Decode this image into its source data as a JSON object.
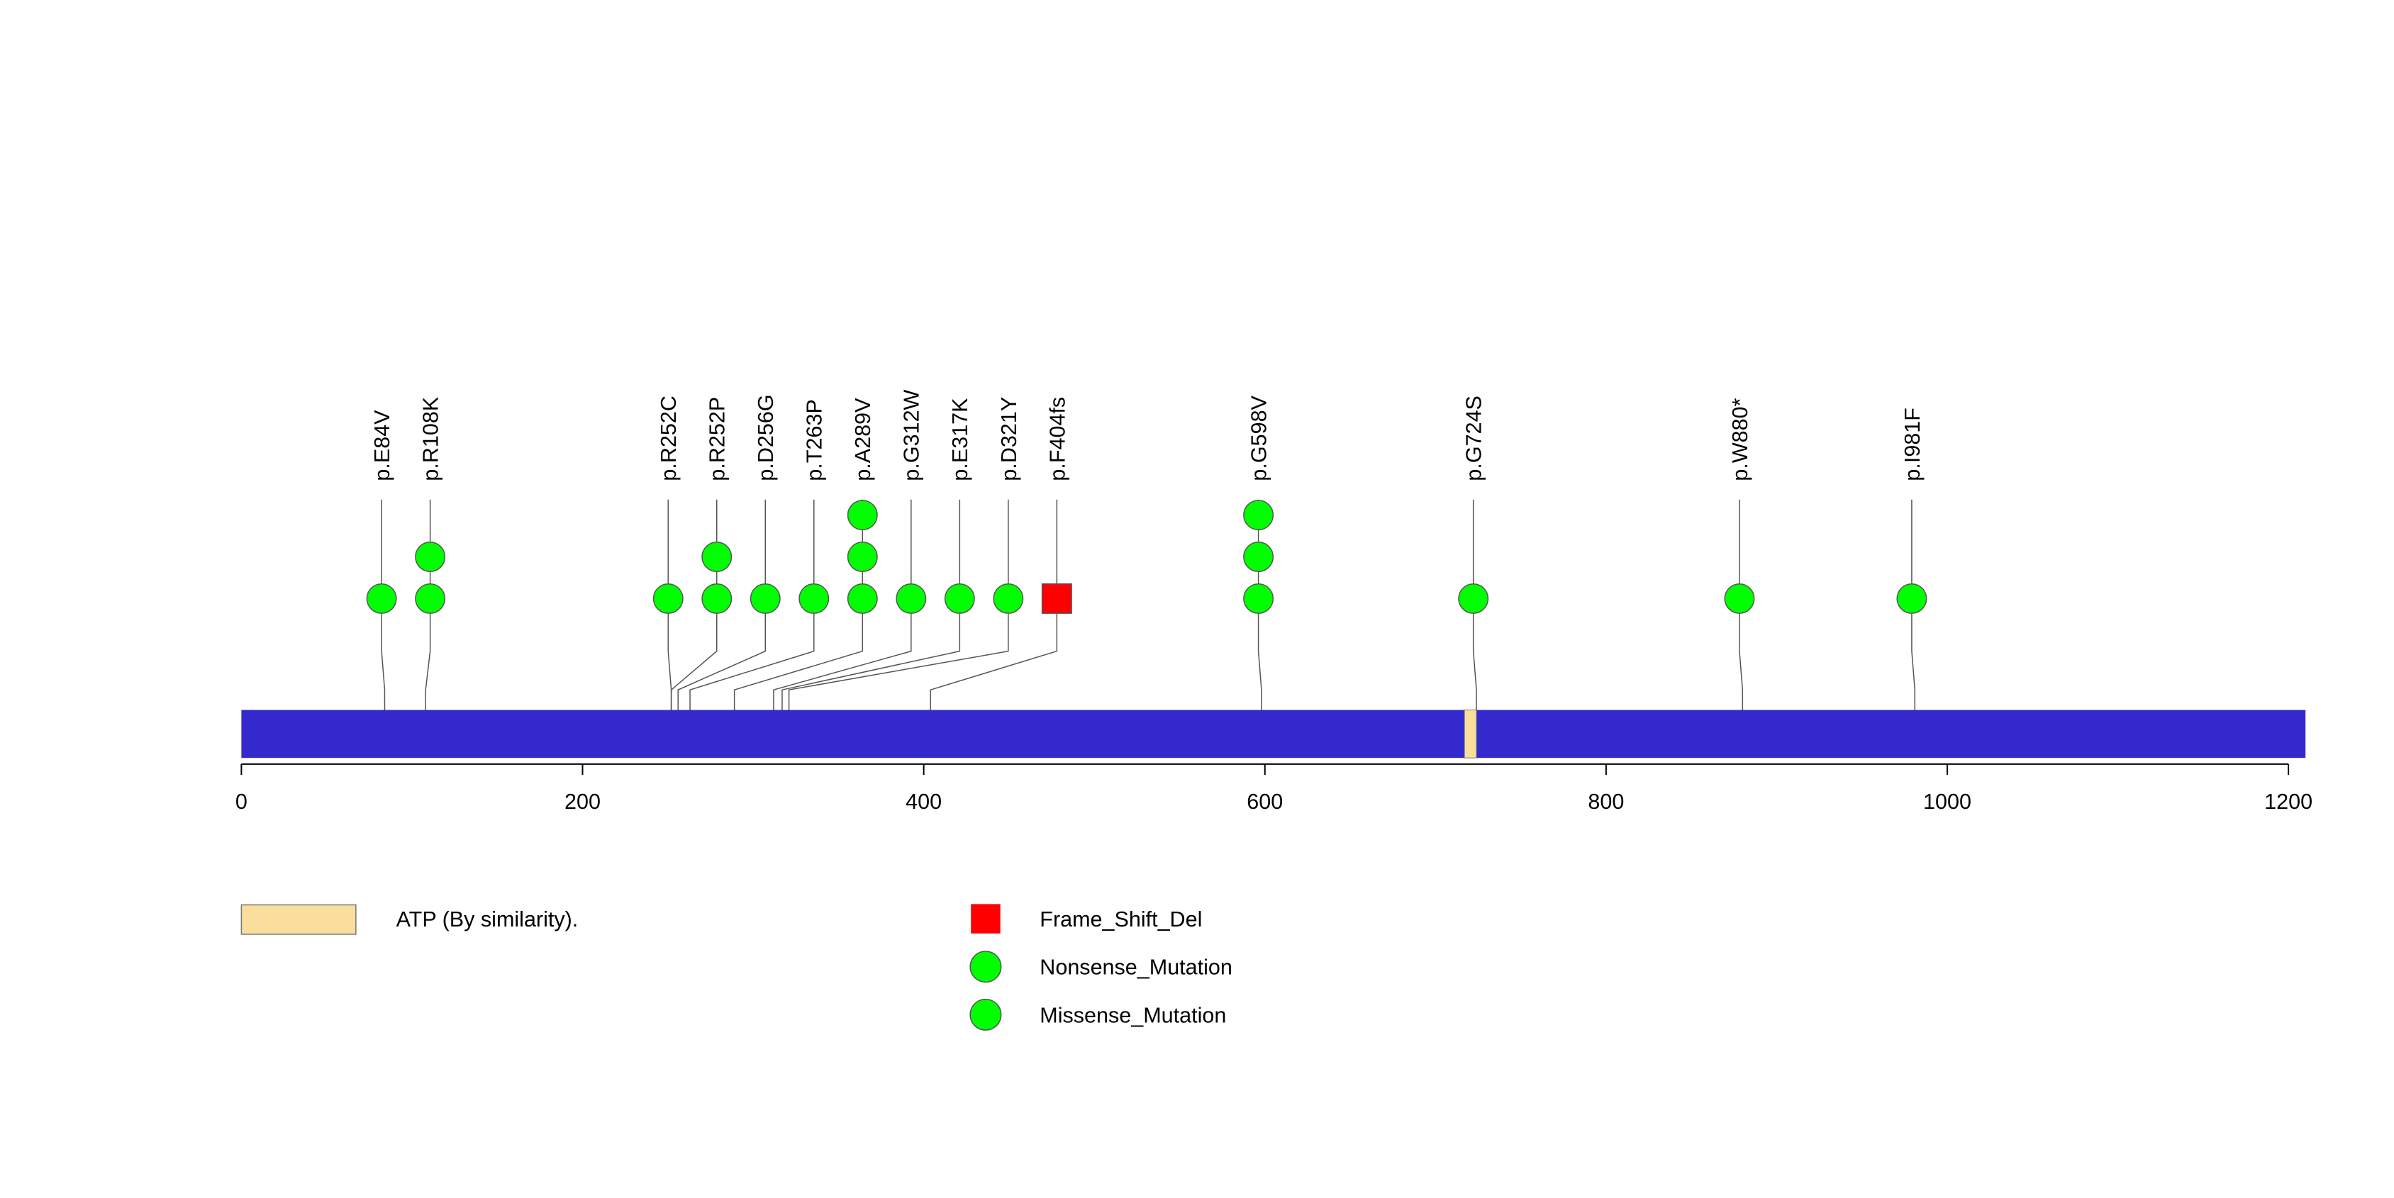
{
  "chart_data": {
    "type": "lollipop",
    "protein_length": 1210,
    "axis": {
      "ticks": [
        0,
        200,
        400,
        600,
        800,
        1000,
        1200
      ],
      "tick_labels": [
        "0",
        "200",
        "400",
        "600",
        "800",
        "1000",
        "1200"
      ],
      "xlim": [
        0,
        1210
      ]
    },
    "domains": [
      {
        "name": "ATP (By similarity).",
        "start": 717,
        "end": 724,
        "color": "#F9DE9C"
      }
    ],
    "mutations": [
      {
        "label": "p.E84V",
        "position": 84,
        "count": 1,
        "type": "Missense_Mutation"
      },
      {
        "label": "p.R108K",
        "position": 108,
        "count": 2,
        "type": "Missense_Mutation"
      },
      {
        "label": "p.R252C",
        "position": 252,
        "count": 1,
        "type": "Missense_Mutation"
      },
      {
        "label": "p.R252P",
        "position": 252,
        "count": 2,
        "type": "Missense_Mutation"
      },
      {
        "label": "p.D256G",
        "position": 256,
        "count": 1,
        "type": "Missense_Mutation"
      },
      {
        "label": "p.T263P",
        "position": 263,
        "count": 1,
        "type": "Missense_Mutation"
      },
      {
        "label": "p.A289V",
        "position": 289,
        "count": 3,
        "type": "Missense_Mutation"
      },
      {
        "label": "p.G312W",
        "position": 312,
        "count": 1,
        "type": "Missense_Mutation"
      },
      {
        "label": "p.E317K",
        "position": 317,
        "count": 1,
        "type": "Missense_Mutation"
      },
      {
        "label": "p.D321Y",
        "position": 321,
        "count": 1,
        "type": "Missense_Mutation"
      },
      {
        "label": "p.F404fs",
        "position": 404,
        "count": 1,
        "type": "Frame_Shift_Del"
      },
      {
        "label": "p.G598V",
        "position": 598,
        "count": 3,
        "type": "Missense_Mutation"
      },
      {
        "label": "p.G724S",
        "position": 724,
        "count": 1,
        "type": "Missense_Mutation"
      },
      {
        "label": "p.W880*",
        "position": 880,
        "count": 1,
        "type": "Nonsense_Mutation"
      },
      {
        "label": "p.I981F",
        "position": 981,
        "count": 1,
        "type": "Missense_Mutation"
      }
    ],
    "legend": [
      {
        "name": "Frame_Shift_Del",
        "shape": "square",
        "color": "#FF0000"
      },
      {
        "name": "Nonsense_Mutation",
        "shape": "circle",
        "color": "#00FF00"
      },
      {
        "name": "Missense_Mutation",
        "shape": "circle",
        "color": "#00FF00"
      }
    ],
    "colors": {
      "protein_bar": "#3329CC",
      "missense": "#00FF00",
      "frameshift": "#FF0000",
      "stem": "#555555"
    }
  }
}
